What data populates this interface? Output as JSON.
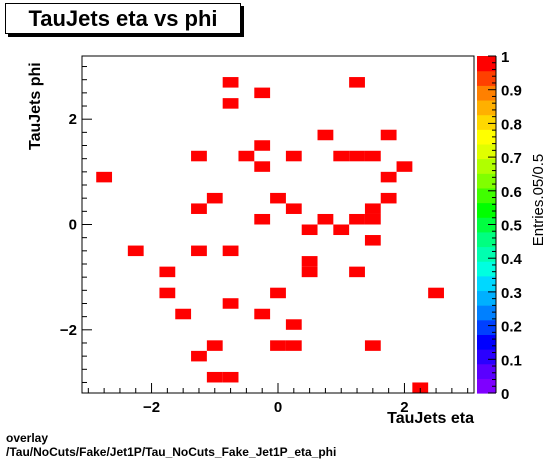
{
  "chart_data": {
    "type": "heatmap",
    "title": "TauJets eta vs phi",
    "xlabel": "TauJets eta",
    "ylabel": "TauJets phi",
    "zlabel": "Entries.05/0.5",
    "xlim": [
      -3.1,
      3.1
    ],
    "ylim": [
      -3.2,
      3.2
    ],
    "zlim": [
      0,
      1
    ],
    "bin_width_x": 0.25,
    "bin_height_y": 0.2,
    "x_ticks": [
      -2,
      0,
      2
    ],
    "x_tick_labels": [
      "−2",
      "0",
      "2"
    ],
    "y_ticks": [
      -2,
      0,
      2
    ],
    "y_tick_labels": [
      "−2",
      "0",
      "2"
    ],
    "z_ticks": [
      0,
      0.1,
      0.2,
      0.3,
      0.4,
      0.5,
      0.6,
      0.7,
      0.8,
      0.9,
      1
    ],
    "z_tick_labels": [
      "0",
      "0.1",
      "0.2",
      "0.3",
      "0.4",
      "0.5",
      "0.6",
      "0.7",
      "0.8",
      "0.9",
      "1"
    ],
    "cell_color": "#ff0000",
    "palette": [
      "#7f00ff",
      "#5a00ff",
      "#2a00ff",
      "#0000ff",
      "#0040ff",
      "#0080ff",
      "#00b0ff",
      "#00d8ff",
      "#00ffe0",
      "#00ffb0",
      "#00ff80",
      "#00ff40",
      "#00ff00",
      "#40ff00",
      "#80ff00",
      "#b0ff00",
      "#e0ff00",
      "#ffff00",
      "#ffd800",
      "#ffb000",
      "#ff8000",
      "#ff4000",
      "#ff0000"
    ],
    "cells": [
      {
        "x": -0.75,
        "y": 2.7,
        "value": 1
      },
      {
        "x": 1.25,
        "y": 2.7,
        "value": 1
      },
      {
        "x": -0.25,
        "y": 2.5,
        "value": 1
      },
      {
        "x": -0.75,
        "y": 2.3,
        "value": 1
      },
      {
        "x": 0.75,
        "y": 1.7,
        "value": 1
      },
      {
        "x": 1.75,
        "y": 1.7,
        "value": 1
      },
      {
        "x": -0.25,
        "y": 1.5,
        "value": 1
      },
      {
        "x": -1.25,
        "y": 1.3,
        "value": 1
      },
      {
        "x": -0.5,
        "y": 1.3,
        "value": 1
      },
      {
        "x": 0.25,
        "y": 1.3,
        "value": 1
      },
      {
        "x": 1.0,
        "y": 1.3,
        "value": 1
      },
      {
        "x": 1.25,
        "y": 1.3,
        "value": 1
      },
      {
        "x": 1.5,
        "y": 1.3,
        "value": 1
      },
      {
        "x": -0.25,
        "y": 1.1,
        "value": 1
      },
      {
        "x": 2.0,
        "y": 1.1,
        "value": 1
      },
      {
        "x": -2.75,
        "y": 0.9,
        "value": 1
      },
      {
        "x": 1.75,
        "y": 0.9,
        "value": 1
      },
      {
        "x": -1.0,
        "y": 0.5,
        "value": 1
      },
      {
        "x": 0.0,
        "y": 0.5,
        "value": 1
      },
      {
        "x": 1.75,
        "y": 0.5,
        "value": 1
      },
      {
        "x": -1.25,
        "y": 0.3,
        "value": 1
      },
      {
        "x": 0.25,
        "y": 0.3,
        "value": 1
      },
      {
        "x": 1.5,
        "y": 0.3,
        "value": 1
      },
      {
        "x": -0.25,
        "y": 0.1,
        "value": 1
      },
      {
        "x": 0.75,
        "y": 0.1,
        "value": 1
      },
      {
        "x": 1.25,
        "y": 0.1,
        "value": 1
      },
      {
        "x": 1.5,
        "y": 0.1,
        "value": 1
      },
      {
        "x": 0.5,
        "y": -0.1,
        "value": 1
      },
      {
        "x": 1.0,
        "y": -0.1,
        "value": 1
      },
      {
        "x": 1.5,
        "y": -0.3,
        "value": 1
      },
      {
        "x": -2.25,
        "y": -0.5,
        "value": 1
      },
      {
        "x": -1.25,
        "y": -0.5,
        "value": 1
      },
      {
        "x": -0.75,
        "y": -0.5,
        "value": 1
      },
      {
        "x": 0.5,
        "y": -0.7,
        "value": 1
      },
      {
        "x": -1.75,
        "y": -0.9,
        "value": 1
      },
      {
        "x": 0.5,
        "y": -0.9,
        "value": 1
      },
      {
        "x": 1.25,
        "y": -0.9,
        "value": 1
      },
      {
        "x": -1.75,
        "y": -1.3,
        "value": 1
      },
      {
        "x": 0.0,
        "y": -1.3,
        "value": 1
      },
      {
        "x": 2.5,
        "y": -1.3,
        "value": 1
      },
      {
        "x": -0.75,
        "y": -1.5,
        "value": 1
      },
      {
        "x": -1.5,
        "y": -1.7,
        "value": 1
      },
      {
        "x": -0.25,
        "y": -1.7,
        "value": 1
      },
      {
        "x": 0.25,
        "y": -1.9,
        "value": 1
      },
      {
        "x": -1.0,
        "y": -2.3,
        "value": 1
      },
      {
        "x": 0.0,
        "y": -2.3,
        "value": 1
      },
      {
        "x": 0.25,
        "y": -2.3,
        "value": 1
      },
      {
        "x": 1.5,
        "y": -2.3,
        "value": 1
      },
      {
        "x": -1.25,
        "y": -2.5,
        "value": 1
      },
      {
        "x": -1.0,
        "y": -2.9,
        "value": 1
      },
      {
        "x": -0.75,
        "y": -2.9,
        "value": 1
      },
      {
        "x": 2.25,
        "y": -3.1,
        "value": 1
      }
    ]
  },
  "footer": {
    "line1": "overlay",
    "line2": "/Tau/NoCuts/Fake/Jet1P/Tau_NoCuts_Fake_Jet1P_eta_phi"
  }
}
